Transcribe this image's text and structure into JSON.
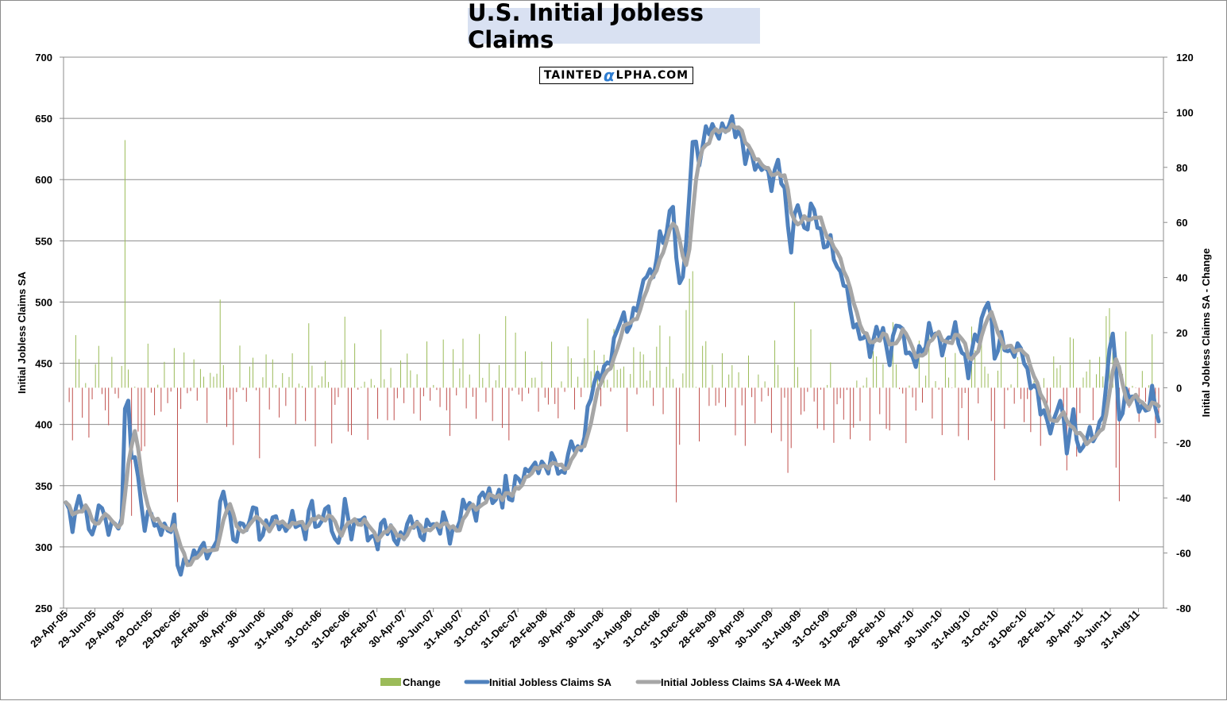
{
  "chart_data": {
    "type": "bar+line",
    "title": "U.S. Initial Jobless Claims",
    "watermark": {
      "prefix": "TAINTED",
      "alpha": "α",
      "suffix": "LPHA.COM"
    },
    "ylabel_left": "Initial Jobless Claims SA",
    "ylabel_right": "Initial Jobless Claims SA - Change",
    "ylim_left": [
      250,
      700
    ],
    "ylim_right": [
      -80,
      120
    ],
    "yticks_left": [
      "250",
      "300",
      "350",
      "400",
      "450",
      "500",
      "550",
      "600",
      "650",
      "700"
    ],
    "yticks_right": [
      "-80",
      "-60",
      "-40",
      "-20",
      "0",
      "20",
      "40",
      "60",
      "80",
      "100",
      "120"
    ],
    "xticks": [
      "29-Apr-05",
      "29-Jun-05",
      "29-Aug-05",
      "29-Oct-05",
      "29-Dec-05",
      "28-Feb-06",
      "30-Apr-06",
      "30-Jun-06",
      "31-Aug-06",
      "31-Oct-06",
      "31-Dec-06",
      "28-Feb-07",
      "30-Apr-07",
      "30-Jun-07",
      "31-Aug-07",
      "31-Oct-07",
      "31-Dec-07",
      "29-Feb-08",
      "30-Apr-08",
      "30-Jun-08",
      "31-Aug-08",
      "31-Oct-08",
      "31-Dec-08",
      "28-Feb-09",
      "30-Apr-09",
      "30-Jun-09",
      "31-Aug-09",
      "31-Oct-09",
      "31-Dec-09",
      "28-Feb-10",
      "30-Apr-10",
      "30-Jun-10",
      "31-Aug-10",
      "31-Oct-10",
      "31-Dec-10",
      "28-Feb-11",
      "30-Apr-11",
      "30-Jun-11",
      "31-Aug-11"
    ],
    "x_start": "2005-04-29",
    "week_count": 334,
    "claims_anchors": [
      [
        0,
        333
      ],
      [
        2,
        322
      ],
      [
        4,
        338
      ],
      [
        7,
        320
      ],
      [
        9,
        312
      ],
      [
        10,
        335
      ],
      [
        12,
        322
      ],
      [
        15,
        315
      ],
      [
        17,
        318
      ],
      [
        18,
        420
      ],
      [
        19,
        423
      ],
      [
        20,
        365
      ],
      [
        21,
        375
      ],
      [
        23,
        335
      ],
      [
        24,
        322
      ],
      [
        26,
        324
      ],
      [
        28,
        315
      ],
      [
        30,
        320
      ],
      [
        31,
        305
      ],
      [
        33,
        325
      ],
      [
        34,
        287
      ],
      [
        36,
        282
      ],
      [
        38,
        290
      ],
      [
        40,
        300
      ],
      [
        42,
        295
      ],
      [
        44,
        295
      ],
      [
        46,
        310
      ],
      [
        48,
        345
      ],
      [
        50,
        325
      ],
      [
        52,
        300
      ],
      [
        54,
        325
      ],
      [
        55,
        313
      ],
      [
        57,
        335
      ],
      [
        59,
        308
      ],
      [
        61,
        320
      ],
      [
        63,
        318
      ],
      [
        65,
        322
      ],
      [
        67,
        315
      ],
      [
        69,
        320
      ],
      [
        71,
        322
      ],
      [
        73,
        310
      ],
      [
        75,
        335
      ],
      [
        77,
        315
      ],
      [
        79,
        330
      ],
      [
        81,
        320
      ],
      [
        83,
        300
      ],
      [
        85,
        332
      ],
      [
        87,
        315
      ],
      [
        89,
        322
      ],
      [
        91,
        318
      ],
      [
        93,
        310
      ],
      [
        95,
        300
      ],
      [
        97,
        325
      ],
      [
        99,
        312
      ],
      [
        101,
        300
      ],
      [
        103,
        316
      ],
      [
        105,
        320
      ],
      [
        107,
        315
      ],
      [
        109,
        312
      ],
      [
        111,
        318
      ],
      [
        113,
        316
      ],
      [
        115,
        325
      ],
      [
        117,
        305
      ],
      [
        119,
        320
      ],
      [
        121,
        330
      ],
      [
        123,
        335
      ],
      [
        125,
        330
      ],
      [
        127,
        340
      ],
      [
        129,
        345
      ],
      [
        131,
        340
      ],
      [
        133,
        335
      ],
      [
        134,
        358
      ],
      [
        135,
        340
      ],
      [
        137,
        350
      ],
      [
        139,
        355
      ],
      [
        141,
        368
      ],
      [
        143,
        360
      ],
      [
        145,
        370
      ],
      [
        147,
        365
      ],
      [
        149,
        370
      ],
      [
        151,
        360
      ],
      [
        153,
        372
      ],
      [
        155,
        385
      ],
      [
        157,
        380
      ],
      [
        159,
        405
      ],
      [
        161,
        440
      ],
      [
        163,
        440
      ],
      [
        165,
        445
      ],
      [
        167,
        470
      ],
      [
        169,
        485
      ],
      [
        171,
        480
      ],
      [
        173,
        492
      ],
      [
        175,
        500
      ],
      [
        177,
        530
      ],
      [
        179,
        520
      ],
      [
        181,
        550
      ],
      [
        183,
        560
      ],
      [
        185,
        580
      ],
      [
        186,
        530
      ],
      [
        187,
        515
      ],
      [
        189,
        545
      ],
      [
        191,
        630
      ],
      [
        193,
        620
      ],
      [
        195,
        638
      ],
      [
        197,
        640
      ],
      [
        199,
        642
      ],
      [
        201,
        638
      ],
      [
        203,
        648
      ],
      [
        205,
        640
      ],
      [
        207,
        615
      ],
      [
        209,
        625
      ],
      [
        211,
        605
      ],
      [
        213,
        610
      ],
      [
        215,
        600
      ],
      [
        217,
        610
      ],
      [
        219,
        590
      ],
      [
        221,
        545
      ],
      [
        223,
        580
      ],
      [
        225,
        560
      ],
      [
        227,
        575
      ],
      [
        229,
        565
      ],
      [
        231,
        550
      ],
      [
        233,
        545
      ],
      [
        235,
        530
      ],
      [
        237,
        520
      ],
      [
        239,
        490
      ],
      [
        241,
        480
      ],
      [
        243,
        470
      ],
      [
        245,
        460
      ],
      [
        247,
        480
      ],
      [
        249,
        470
      ],
      [
        251,
        455
      ],
      [
        253,
        485
      ],
      [
        255,
        470
      ],
      [
        257,
        460
      ],
      [
        259,
        450
      ],
      [
        261,
        460
      ],
      [
        263,
        480
      ],
      [
        265,
        470
      ],
      [
        267,
        465
      ],
      [
        269,
        470
      ],
      [
        271,
        475
      ],
      [
        273,
        465
      ],
      [
        275,
        440
      ],
      [
        277,
        470
      ],
      [
        279,
        485
      ],
      [
        281,
        500
      ],
      [
        283,
        460
      ],
      [
        285,
        470
      ],
      [
        287,
        455
      ],
      [
        289,
        465
      ],
      [
        291,
        460
      ],
      [
        293,
        440
      ],
      [
        295,
        435
      ],
      [
        297,
        410
      ],
      [
        299,
        405
      ],
      [
        301,
        398
      ],
      [
        303,
        420
      ],
      [
        305,
        385
      ],
      [
        307,
        405
      ],
      [
        309,
        375
      ],
      [
        311,
        395
      ],
      [
        313,
        385
      ],
      [
        315,
        400
      ],
      [
        317,
        430
      ],
      [
        319,
        478
      ],
      [
        321,
        408
      ],
      [
        323,
        420
      ],
      [
        325,
        425
      ],
      [
        327,
        418
      ],
      [
        329,
        405
      ],
      [
        331,
        430
      ],
      [
        333,
        405
      ]
    ],
    "series": [
      {
        "name": "Change",
        "color": "#9bbb59",
        "color_negative": "#c0504d",
        "axis": "right"
      },
      {
        "name": "Initial Jobless Claims SA",
        "color": "#4f81bd",
        "axis": "left"
      },
      {
        "name": "Initial Jobless Claims SA 4-Week MA",
        "color": "#a6a6a6",
        "axis": "left"
      }
    ],
    "legend_position": "bottom",
    "grid": true
  }
}
